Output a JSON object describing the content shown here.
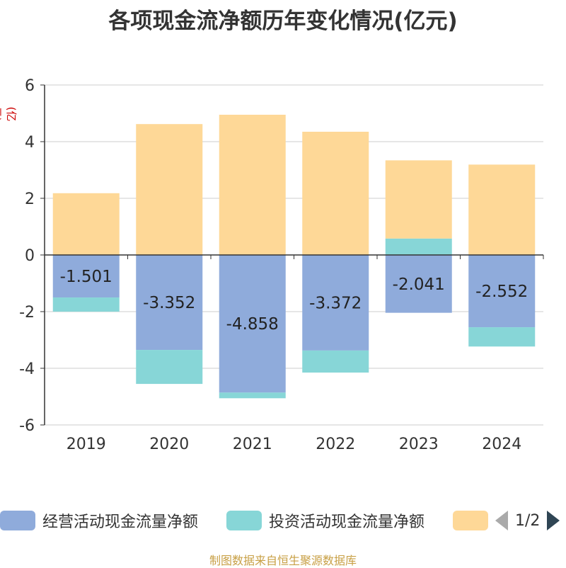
{
  "chart_data": {
    "type": "bar",
    "stacked": true,
    "title": "各项现金流净额历年变化情况(亿元)",
    "ylabel": "(亿元)",
    "ylim": [
      -6,
      6
    ],
    "yticks": [
      6,
      4,
      2,
      0,
      -2,
      -4,
      -6
    ],
    "categories": [
      "2019",
      "2020",
      "2021",
      "2022",
      "2023",
      "2024"
    ],
    "series": [
      {
        "name": "经营活动现金流量净额",
        "color": "#8fabdb",
        "values": [
          -1.501,
          -3.352,
          -4.858,
          -3.372,
          -2.041,
          -2.552
        ],
        "labels": [
          "-1.501",
          "-3.352",
          "-4.858",
          "-3.372",
          "-2.041",
          "-2.552"
        ]
      },
      {
        "name": "投资活动现金流量净额",
        "color": "#87d6d7",
        "values": [
          -0.5,
          -1.2,
          -0.2,
          -0.78,
          0.58,
          -0.68
        ]
      },
      {
        "name": "",
        "color": "#fed897",
        "values": [
          2.18,
          4.62,
          4.95,
          4.35,
          2.76,
          3.19
        ]
      }
    ],
    "grid": true,
    "legend_position": "bottom"
  },
  "legend": {
    "items": [
      {
        "label": "经营活动现金流量净额",
        "color": "#8fabdb"
      },
      {
        "label": "投资活动现金流量净额",
        "color": "#87d6d7"
      },
      {
        "label": "",
        "color": "#fed897"
      }
    ],
    "pager_text": "1/2"
  },
  "footer": {
    "source": "制图数据来自恒生聚源数据库"
  }
}
